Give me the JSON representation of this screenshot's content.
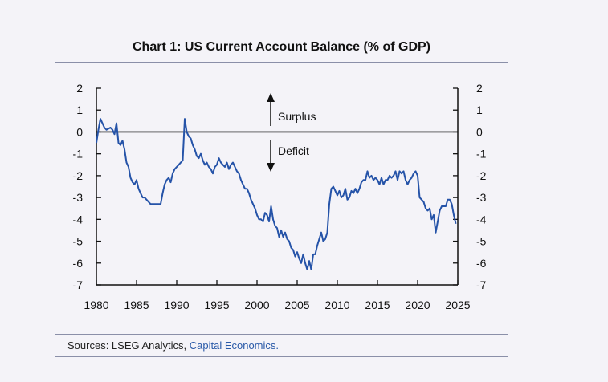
{
  "header": {
    "title": "Chart 1: US Current Account Balance (% of GDP)"
  },
  "footer": {
    "source_prefix": "Sources: LSEG Analytics, ",
    "source_link": "Capital Economics."
  },
  "chart_data": {
    "type": "line",
    "title": "Chart 1: US Current Account Balance (% of GDP)",
    "xlabel": "",
    "ylabel": "",
    "xlim": [
      1980,
      2025
    ],
    "ylim": [
      -7,
      2
    ],
    "x_ticks": [
      1980,
      1985,
      1990,
      1995,
      2000,
      2005,
      2010,
      2015,
      2020,
      2025
    ],
    "y_ticks": [
      2,
      1,
      0,
      -1,
      -2,
      -3,
      -4,
      -5,
      -6,
      -7
    ],
    "grid": false,
    "annotations": [
      {
        "text": "Surplus",
        "arrow": "up"
      },
      {
        "text": "Deficit",
        "arrow": "down"
      }
    ],
    "series": [
      {
        "color": "#2553a8",
        "points": [
          [
            1980.0,
            -0.5
          ],
          [
            1980.25,
            0.1
          ],
          [
            1980.5,
            0.6
          ],
          [
            1980.75,
            0.4
          ],
          [
            1981.0,
            0.2
          ],
          [
            1981.25,
            0.1
          ],
          [
            1981.5,
            0.15
          ],
          [
            1981.75,
            0.2
          ],
          [
            1982.0,
            0.1
          ],
          [
            1982.25,
            -0.1
          ],
          [
            1982.5,
            0.4
          ],
          [
            1982.75,
            -0.5
          ],
          [
            1983.0,
            -0.6
          ],
          [
            1983.25,
            -0.4
          ],
          [
            1983.5,
            -0.8
          ],
          [
            1983.75,
            -1.4
          ],
          [
            1984.0,
            -1.6
          ],
          [
            1984.25,
            -2.1
          ],
          [
            1984.5,
            -2.3
          ],
          [
            1984.75,
            -2.4
          ],
          [
            1985.0,
            -2.2
          ],
          [
            1985.25,
            -2.6
          ],
          [
            1985.5,
            -2.8
          ],
          [
            1985.75,
            -3.0
          ],
          [
            1986.0,
            -3.0
          ],
          [
            1986.25,
            -3.1
          ],
          [
            1986.5,
            -3.2
          ],
          [
            1986.75,
            -3.3
          ],
          [
            1987.0,
            -3.3
          ],
          [
            1987.5,
            -3.3
          ],
          [
            1988.0,
            -3.3
          ],
          [
            1988.25,
            -2.8
          ],
          [
            1988.5,
            -2.4
          ],
          [
            1988.75,
            -2.2
          ],
          [
            1989.0,
            -2.1
          ],
          [
            1989.25,
            -2.3
          ],
          [
            1989.5,
            -1.9
          ],
          [
            1989.75,
            -1.7
          ],
          [
            1990.0,
            -1.6
          ],
          [
            1990.25,
            -1.5
          ],
          [
            1990.5,
            -1.4
          ],
          [
            1990.75,
            -1.3
          ],
          [
            1991.0,
            0.6
          ],
          [
            1991.25,
            0.0
          ],
          [
            1991.5,
            -0.2
          ],
          [
            1991.75,
            -0.3
          ],
          [
            1992.0,
            -0.6
          ],
          [
            1992.25,
            -0.8
          ],
          [
            1992.5,
            -1.1
          ],
          [
            1992.75,
            -1.2
          ],
          [
            1993.0,
            -1.0
          ],
          [
            1993.25,
            -1.3
          ],
          [
            1993.5,
            -1.5
          ],
          [
            1993.75,
            -1.4
          ],
          [
            1994.0,
            -1.6
          ],
          [
            1994.25,
            -1.7
          ],
          [
            1994.5,
            -1.9
          ],
          [
            1994.75,
            -1.6
          ],
          [
            1995.0,
            -1.5
          ],
          [
            1995.25,
            -1.2
          ],
          [
            1995.5,
            -1.4
          ],
          [
            1995.75,
            -1.5
          ],
          [
            1996.0,
            -1.6
          ],
          [
            1996.25,
            -1.4
          ],
          [
            1996.5,
            -1.7
          ],
          [
            1996.75,
            -1.5
          ],
          [
            1997.0,
            -1.4
          ],
          [
            1997.25,
            -1.6
          ],
          [
            1997.5,
            -1.8
          ],
          [
            1997.75,
            -1.9
          ],
          [
            1998.0,
            -2.2
          ],
          [
            1998.25,
            -2.4
          ],
          [
            1998.5,
            -2.6
          ],
          [
            1998.75,
            -2.6
          ],
          [
            1999.0,
            -2.8
          ],
          [
            1999.25,
            -3.1
          ],
          [
            1999.5,
            -3.3
          ],
          [
            1999.75,
            -3.5
          ],
          [
            2000.0,
            -3.8
          ],
          [
            2000.25,
            -4.0
          ],
          [
            2000.5,
            -4.0
          ],
          [
            2000.75,
            -4.1
          ],
          [
            2001.0,
            -3.7
          ],
          [
            2001.25,
            -3.8
          ],
          [
            2001.5,
            -4.1
          ],
          [
            2001.75,
            -3.4
          ],
          [
            2002.0,
            -4.0
          ],
          [
            2002.25,
            -4.3
          ],
          [
            2002.5,
            -4.4
          ],
          [
            2002.75,
            -4.8
          ],
          [
            2003.0,
            -4.5
          ],
          [
            2003.25,
            -4.8
          ],
          [
            2003.5,
            -4.6
          ],
          [
            2003.75,
            -4.9
          ],
          [
            2004.0,
            -5.0
          ],
          [
            2004.25,
            -5.3
          ],
          [
            2004.5,
            -5.4
          ],
          [
            2004.75,
            -5.7
          ],
          [
            2005.0,
            -5.5
          ],
          [
            2005.25,
            -5.8
          ],
          [
            2005.5,
            -6.0
          ],
          [
            2005.75,
            -5.6
          ],
          [
            2006.0,
            -6.0
          ],
          [
            2006.25,
            -6.3
          ],
          [
            2006.5,
            -5.9
          ],
          [
            2006.75,
            -6.3
          ],
          [
            2007.0,
            -5.6
          ],
          [
            2007.25,
            -5.6
          ],
          [
            2007.5,
            -5.2
          ],
          [
            2007.75,
            -4.9
          ],
          [
            2008.0,
            -4.6
          ],
          [
            2008.25,
            -5.0
          ],
          [
            2008.5,
            -4.9
          ],
          [
            2008.75,
            -4.6
          ],
          [
            2009.0,
            -3.3
          ],
          [
            2009.25,
            -2.6
          ],
          [
            2009.5,
            -2.5
          ],
          [
            2009.75,
            -2.7
          ],
          [
            2010.0,
            -2.9
          ],
          [
            2010.25,
            -2.7
          ],
          [
            2010.5,
            -3.0
          ],
          [
            2010.75,
            -2.9
          ],
          [
            2011.0,
            -2.6
          ],
          [
            2011.25,
            -3.1
          ],
          [
            2011.5,
            -3.0
          ],
          [
            2011.75,
            -2.7
          ],
          [
            2012.0,
            -2.8
          ],
          [
            2012.25,
            -2.6
          ],
          [
            2012.5,
            -2.8
          ],
          [
            2012.75,
            -2.6
          ],
          [
            2013.0,
            -2.3
          ],
          [
            2013.25,
            -2.2
          ],
          [
            2013.5,
            -2.2
          ],
          [
            2013.75,
            -1.8
          ],
          [
            2014.0,
            -2.1
          ],
          [
            2014.25,
            -2.0
          ],
          [
            2014.5,
            -2.2
          ],
          [
            2014.75,
            -2.1
          ],
          [
            2015.0,
            -2.2
          ],
          [
            2015.25,
            -2.4
          ],
          [
            2015.5,
            -2.1
          ],
          [
            2015.75,
            -2.4
          ],
          [
            2016.0,
            -2.2
          ],
          [
            2016.25,
            -2.2
          ],
          [
            2016.5,
            -2.0
          ],
          [
            2016.75,
            -2.1
          ],
          [
            2017.0,
            -2.0
          ],
          [
            2017.25,
            -1.8
          ],
          [
            2017.5,
            -2.2
          ],
          [
            2017.75,
            -1.8
          ],
          [
            2018.0,
            -1.9
          ],
          [
            2018.25,
            -1.8
          ],
          [
            2018.5,
            -2.2
          ],
          [
            2018.75,
            -2.4
          ],
          [
            2019.0,
            -2.2
          ],
          [
            2019.25,
            -2.1
          ],
          [
            2019.5,
            -1.9
          ],
          [
            2019.75,
            -1.8
          ],
          [
            2020.0,
            -2.0
          ],
          [
            2020.25,
            -3.0
          ],
          [
            2020.5,
            -3.1
          ],
          [
            2020.75,
            -3.2
          ],
          [
            2021.0,
            -3.5
          ],
          [
            2021.25,
            -3.6
          ],
          [
            2021.5,
            -3.5
          ],
          [
            2021.75,
            -4.0
          ],
          [
            2022.0,
            -3.8
          ],
          [
            2022.25,
            -4.6
          ],
          [
            2022.5,
            -4.1
          ],
          [
            2022.75,
            -3.6
          ],
          [
            2023.0,
            -3.4
          ],
          [
            2023.25,
            -3.4
          ],
          [
            2023.5,
            -3.4
          ],
          [
            2023.75,
            -3.1
          ],
          [
            2024.0,
            -3.1
          ],
          [
            2024.25,
            -3.3
          ],
          [
            2024.5,
            -3.8
          ],
          [
            2024.75,
            -4.2
          ]
        ]
      }
    ]
  }
}
